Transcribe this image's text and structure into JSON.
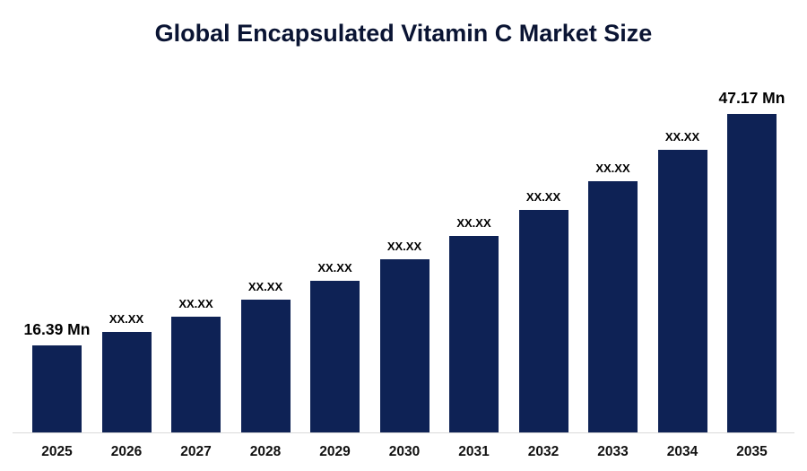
{
  "chart_data": {
    "type": "bar",
    "title": "Global Encapsulated Vitamin C Market Size",
    "unit": "Mn",
    "categories": [
      "2025",
      "2026",
      "2027",
      "2028",
      "2029",
      "2030",
      "2031",
      "2032",
      "2033",
      "2034",
      "2035"
    ],
    "values": [
      16.39,
      18.22,
      20.25,
      22.51,
      25.02,
      27.81,
      30.91,
      34.36,
      38.19,
      42.45,
      47.17
    ],
    "value_labels": [
      "16.39 Mn",
      "XX.XX",
      "XX.XX",
      "XX.XX",
      "XX.XX",
      "XX.XX",
      "XX.XX",
      "XX.XX",
      "XX.XX",
      "XX.XX",
      "47.17 Mn"
    ],
    "first_value_label": "16.39 Mn",
    "last_value_label": "47.17 Mn",
    "xlabel": "",
    "ylabel": "",
    "grid": false,
    "legend": false,
    "bar_color": "#0e2255",
    "title_color": "#0a1433",
    "axis_line_color": "#d9d9d9"
  }
}
